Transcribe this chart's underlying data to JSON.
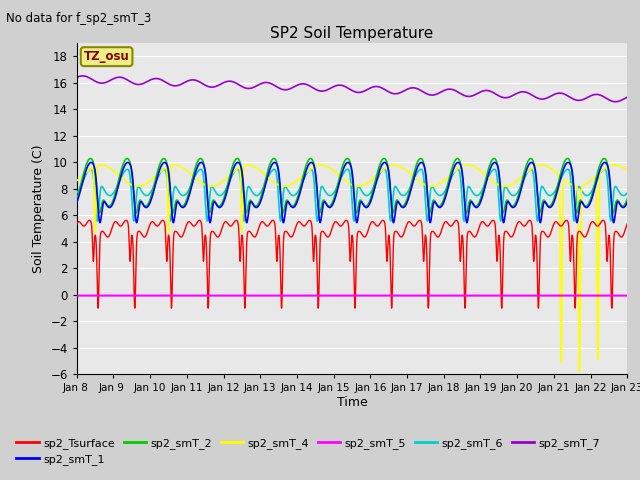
{
  "title": "SP2 Soil Temperature",
  "subtitle": "No data for f_sp2_smT_3",
  "ylabel": "Soil Temperature (C)",
  "xlabel": "Time",
  "ylim": [
    -6,
    19
  ],
  "yticks": [
    -6,
    -4,
    -2,
    0,
    2,
    4,
    6,
    8,
    10,
    12,
    14,
    16,
    18
  ],
  "tz_label": "TZ_osu",
  "color_tsurface": "#ff0000",
  "color_smt1": "#0000ff",
  "color_smt2": "#00cc00",
  "color_smt4": "#ffff00",
  "color_smt5": "#ff00ff",
  "color_smt6": "#00cccc",
  "color_smt7": "#9900cc",
  "n_days": 15,
  "start_day": 8
}
